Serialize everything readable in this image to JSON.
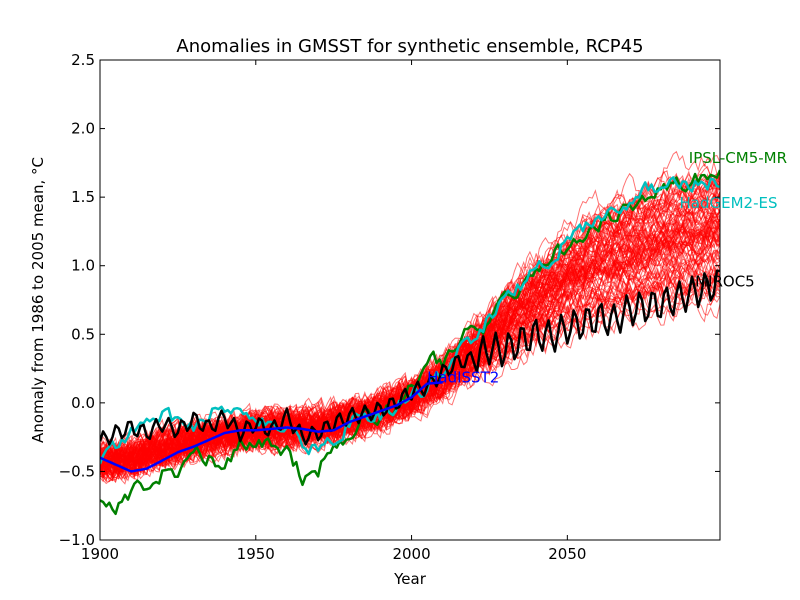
{
  "chart_data": {
    "type": "line",
    "title": "Anomalies in GMSST for synthetic ensemble, RCP45",
    "xlabel": "Year",
    "ylabel": "Anomaly from 1986 to 2005 mean, °C",
    "xlim": [
      1900,
      2099
    ],
    "ylim": [
      -1.0,
      2.5
    ],
    "xticks": [
      1900,
      1950,
      2000,
      2050
    ],
    "yticks": [
      -1.0,
      -0.5,
      0.0,
      0.5,
      1.0,
      1.5,
      2.0,
      2.5
    ],
    "ytick_labels": [
      "−1.0",
      "−0.5",
      "0.0",
      "0.5",
      "1.0",
      "1.5",
      "2.0",
      "2.5"
    ],
    "grid": false,
    "ensemble": {
      "member_count": 100,
      "color": "#ff0000",
      "x": [
        1900,
        1910,
        1920,
        1930,
        1940,
        1950,
        1960,
        1970,
        1980,
        1990,
        2000,
        2010,
        2020,
        2030,
        2040,
        2050,
        2060,
        2070,
        2080,
        2090,
        2099
      ],
      "mean": [
        -0.43,
        -0.4,
        -0.33,
        -0.28,
        -0.23,
        -0.2,
        -0.18,
        -0.17,
        -0.12,
        -0.06,
        0.04,
        0.18,
        0.36,
        0.55,
        0.72,
        0.86,
        0.98,
        1.06,
        1.12,
        1.17,
        1.22
      ],
      "spread": [
        0.1,
        0.1,
        0.1,
        0.1,
        0.1,
        0.1,
        0.1,
        0.1,
        0.1,
        0.1,
        0.1,
        0.12,
        0.14,
        0.17,
        0.2,
        0.22,
        0.25,
        0.28,
        0.3,
        0.32,
        0.34
      ]
    },
    "series": [
      {
        "name": "IPSL-CM5-MR",
        "color": "#008000",
        "x": [
          1900,
          1905,
          1910,
          1915,
          1920,
          1925,
          1930,
          1935,
          1940,
          1945,
          1950,
          1955,
          1960,
          1965,
          1970,
          1975,
          1980,
          1985,
          1990,
          1995,
          2000,
          2005,
          2010,
          2015,
          2020,
          2025,
          2030,
          2035,
          2040,
          2045,
          2050,
          2055,
          2060,
          2065,
          2070,
          2075,
          2080,
          2085,
          2090,
          2095,
          2099
        ],
        "y": [
          -0.7,
          -0.75,
          -0.65,
          -0.58,
          -0.52,
          -0.5,
          -0.35,
          -0.4,
          -0.45,
          -0.28,
          -0.3,
          -0.28,
          -0.35,
          -0.55,
          -0.5,
          -0.3,
          -0.22,
          -0.08,
          -0.1,
          -0.02,
          0.1,
          0.35,
          0.3,
          0.45,
          0.6,
          0.55,
          0.75,
          0.82,
          0.95,
          1.1,
          1.15,
          1.22,
          1.3,
          1.38,
          1.42,
          1.5,
          1.55,
          1.6,
          1.62,
          1.65,
          1.68
        ]
      },
      {
        "name": "HadGEM2-ES",
        "color": "#00bfbf",
        "x": [
          1900,
          1905,
          1910,
          1915,
          1920,
          1925,
          1930,
          1935,
          1940,
          1945,
          1950,
          1955,
          1960,
          1965,
          1970,
          1975,
          1980,
          1985,
          1990,
          1995,
          2000,
          2005,
          2010,
          2015,
          2020,
          2025,
          2030,
          2035,
          2040,
          2045,
          2050,
          2055,
          2060,
          2065,
          2070,
          2075,
          2080,
          2085,
          2090,
          2095,
          2099
        ],
        "y": [
          -0.4,
          -0.3,
          -0.2,
          -0.15,
          -0.1,
          -0.12,
          -0.18,
          -0.08,
          -0.05,
          -0.1,
          -0.12,
          -0.2,
          -0.18,
          -0.3,
          -0.35,
          -0.28,
          -0.15,
          -0.1,
          -0.08,
          -0.02,
          0.05,
          0.12,
          0.25,
          0.38,
          0.48,
          0.62,
          0.78,
          0.85,
          0.98,
          1.05,
          1.18,
          1.28,
          1.35,
          1.42,
          1.48,
          1.55,
          1.58,
          1.6,
          1.58,
          1.6,
          1.62
        ]
      },
      {
        "name": "MIROC5",
        "color": "#000000",
        "x": [
          1900,
          1905,
          1910,
          1915,
          1920,
          1925,
          1930,
          1935,
          1940,
          1945,
          1950,
          1955,
          1960,
          1965,
          1970,
          1975,
          1980,
          1985,
          1990,
          1995,
          2000,
          2005,
          2010,
          2015,
          2020,
          2025,
          2030,
          2035,
          2040,
          2045,
          2050,
          2055,
          2060,
          2065,
          2070,
          2075,
          2080,
          2085,
          2090,
          2095,
          2099
        ],
        "y": [
          -0.28,
          -0.22,
          -0.18,
          -0.22,
          -0.15,
          -0.2,
          -0.12,
          -0.18,
          -0.1,
          -0.22,
          -0.15,
          -0.2,
          -0.1,
          -0.25,
          -0.22,
          -0.15,
          -0.1,
          -0.08,
          -0.05,
          0.0,
          0.08,
          0.12,
          0.22,
          0.3,
          0.32,
          0.4,
          0.38,
          0.45,
          0.5,
          0.48,
          0.55,
          0.58,
          0.62,
          0.6,
          0.68,
          0.7,
          0.72,
          0.76,
          0.8,
          0.84,
          0.88
        ]
      },
      {
        "name": "HadISST2",
        "color": "#0000ff",
        "x": [
          1900,
          1905,
          1910,
          1915,
          1920,
          1925,
          1930,
          1935,
          1940,
          1945,
          1950,
          1955,
          1960,
          1965,
          1970,
          1975,
          1980,
          1985,
          1990,
          1995,
          2000,
          2005,
          2010
        ],
        "y": [
          -0.4,
          -0.45,
          -0.5,
          -0.48,
          -0.42,
          -0.36,
          -0.32,
          -0.27,
          -0.22,
          -0.2,
          -0.2,
          -0.19,
          -0.18,
          -0.19,
          -0.21,
          -0.2,
          -0.14,
          -0.1,
          -0.06,
          -0.02,
          0.04,
          0.14,
          0.15
        ]
      }
    ],
    "annotations": [
      {
        "text": "IPSL-CM5-MR",
        "x": 2089,
        "y": 1.75,
        "color": "#008000"
      },
      {
        "text": "HadGEM2-ES",
        "x": 2086,
        "y": 1.42,
        "color": "#00bfbf"
      },
      {
        "text": "MIROC5",
        "x": 2091,
        "y": 0.85,
        "color": "#000000"
      },
      {
        "text": "HadISST2",
        "x": 2005,
        "y": 0.15,
        "color": "#0000ff"
      }
    ]
  }
}
